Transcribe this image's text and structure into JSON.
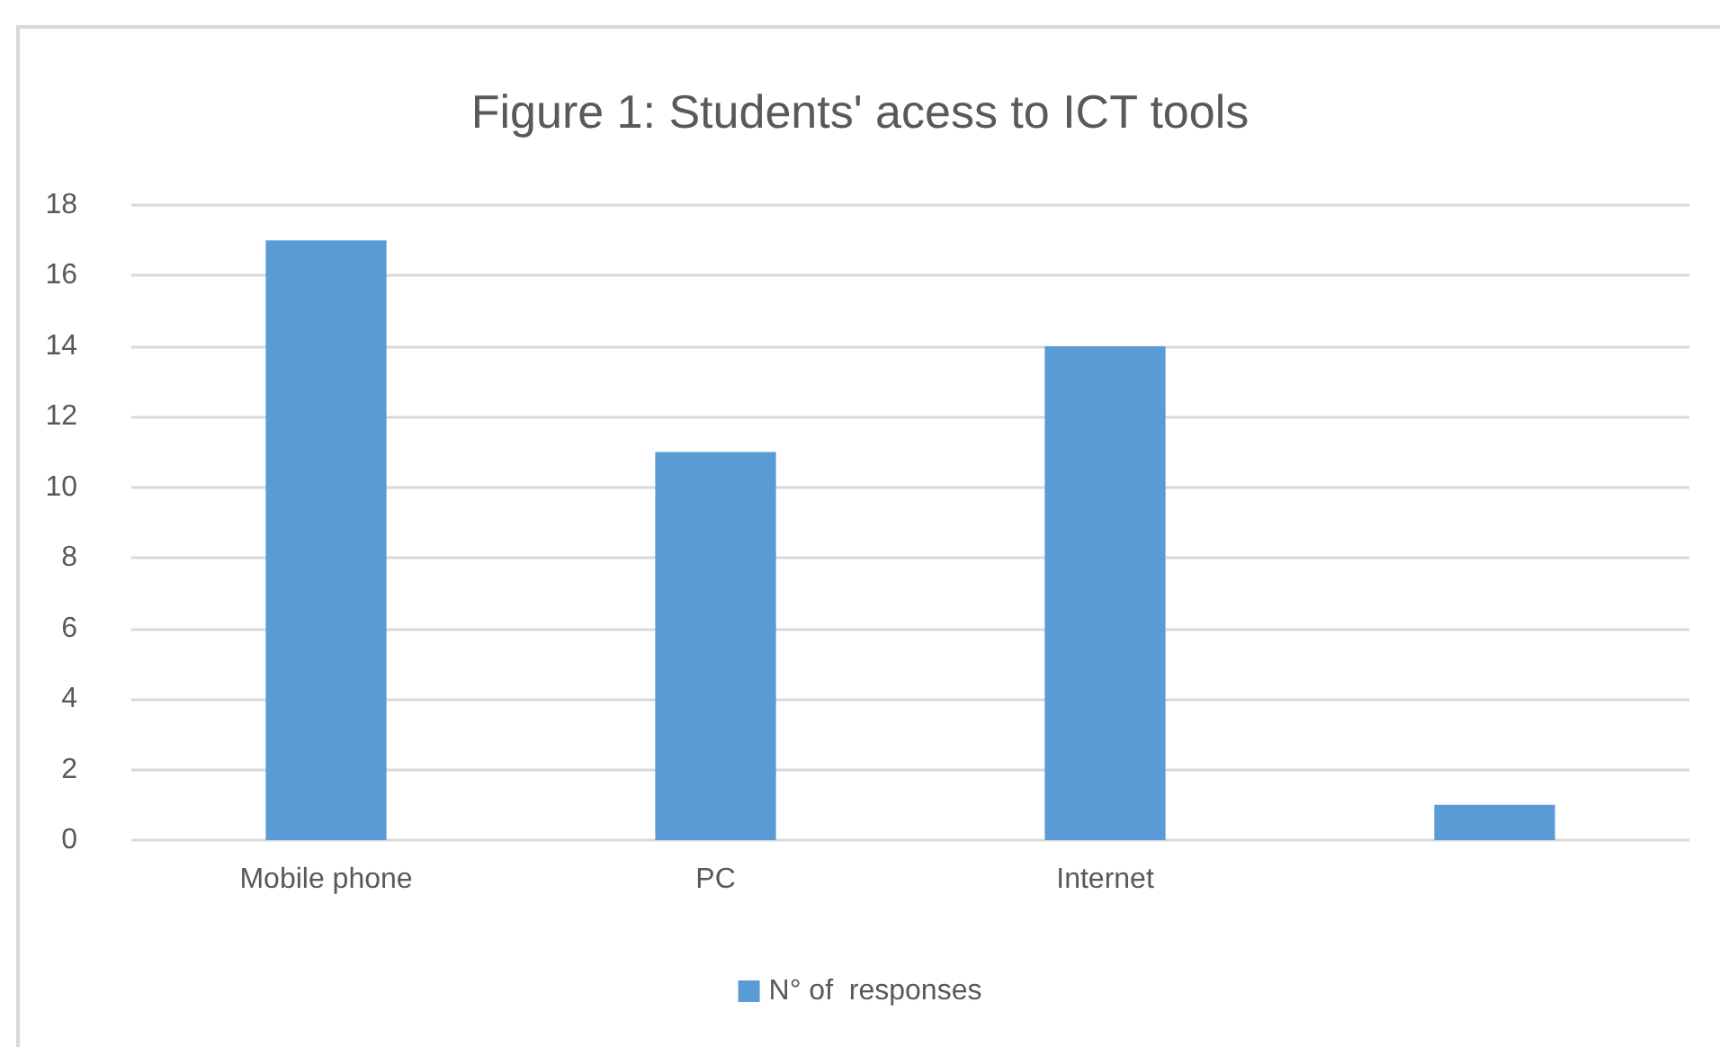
{
  "chart_data": {
    "type": "bar",
    "title": "Figure 1: Students' acess to ICT tools",
    "categories": [
      "Mobile phone",
      "PC",
      "Internet",
      null
    ],
    "series": [
      {
        "name": "N° of  responses",
        "color": "#5b9bd5",
        "values": [
          17,
          11,
          14,
          1
        ]
      }
    ],
    "ylim": [
      0,
      18
    ],
    "yticks": [
      0,
      2,
      4,
      6,
      8,
      10,
      12,
      14,
      16,
      18
    ],
    "grid": "y",
    "legend": "bottom"
  }
}
